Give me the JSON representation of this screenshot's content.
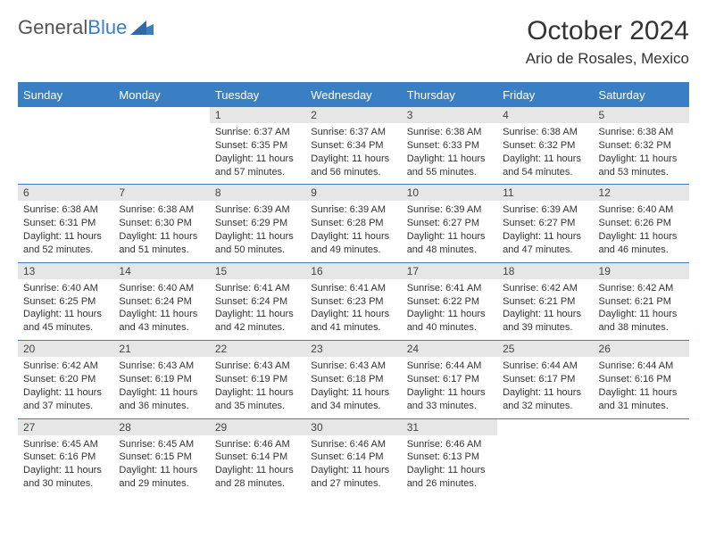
{
  "brand": {
    "part1": "General",
    "part2": "Blue"
  },
  "title": "October 2024",
  "location": "Ario de Rosales, Mexico",
  "colors": {
    "header_bg": "#3a7fc4",
    "header_text": "#ffffff",
    "daynum_bg": "#e6e6e6",
    "border": "#3a7fc4",
    "text": "#333333",
    "logo_gray": "#555555",
    "logo_blue": "#3a7fc4"
  },
  "daysOfWeek": [
    "Sunday",
    "Monday",
    "Tuesday",
    "Wednesday",
    "Thursday",
    "Friday",
    "Saturday"
  ],
  "weeks": [
    [
      null,
      null,
      {
        "n": "1",
        "sr": "Sunrise: 6:37 AM",
        "ss": "Sunset: 6:35 PM",
        "dl": "Daylight: 11 hours and 57 minutes."
      },
      {
        "n": "2",
        "sr": "Sunrise: 6:37 AM",
        "ss": "Sunset: 6:34 PM",
        "dl": "Daylight: 11 hours and 56 minutes."
      },
      {
        "n": "3",
        "sr": "Sunrise: 6:38 AM",
        "ss": "Sunset: 6:33 PM",
        "dl": "Daylight: 11 hours and 55 minutes."
      },
      {
        "n": "4",
        "sr": "Sunrise: 6:38 AM",
        "ss": "Sunset: 6:32 PM",
        "dl": "Daylight: 11 hours and 54 minutes."
      },
      {
        "n": "5",
        "sr": "Sunrise: 6:38 AM",
        "ss": "Sunset: 6:32 PM",
        "dl": "Daylight: 11 hours and 53 minutes."
      }
    ],
    [
      {
        "n": "6",
        "sr": "Sunrise: 6:38 AM",
        "ss": "Sunset: 6:31 PM",
        "dl": "Daylight: 11 hours and 52 minutes."
      },
      {
        "n": "7",
        "sr": "Sunrise: 6:38 AM",
        "ss": "Sunset: 6:30 PM",
        "dl": "Daylight: 11 hours and 51 minutes."
      },
      {
        "n": "8",
        "sr": "Sunrise: 6:39 AM",
        "ss": "Sunset: 6:29 PM",
        "dl": "Daylight: 11 hours and 50 minutes."
      },
      {
        "n": "9",
        "sr": "Sunrise: 6:39 AM",
        "ss": "Sunset: 6:28 PM",
        "dl": "Daylight: 11 hours and 49 minutes."
      },
      {
        "n": "10",
        "sr": "Sunrise: 6:39 AM",
        "ss": "Sunset: 6:27 PM",
        "dl": "Daylight: 11 hours and 48 minutes."
      },
      {
        "n": "11",
        "sr": "Sunrise: 6:39 AM",
        "ss": "Sunset: 6:27 PM",
        "dl": "Daylight: 11 hours and 47 minutes."
      },
      {
        "n": "12",
        "sr": "Sunrise: 6:40 AM",
        "ss": "Sunset: 6:26 PM",
        "dl": "Daylight: 11 hours and 46 minutes."
      }
    ],
    [
      {
        "n": "13",
        "sr": "Sunrise: 6:40 AM",
        "ss": "Sunset: 6:25 PM",
        "dl": "Daylight: 11 hours and 45 minutes."
      },
      {
        "n": "14",
        "sr": "Sunrise: 6:40 AM",
        "ss": "Sunset: 6:24 PM",
        "dl": "Daylight: 11 hours and 43 minutes."
      },
      {
        "n": "15",
        "sr": "Sunrise: 6:41 AM",
        "ss": "Sunset: 6:24 PM",
        "dl": "Daylight: 11 hours and 42 minutes."
      },
      {
        "n": "16",
        "sr": "Sunrise: 6:41 AM",
        "ss": "Sunset: 6:23 PM",
        "dl": "Daylight: 11 hours and 41 minutes."
      },
      {
        "n": "17",
        "sr": "Sunrise: 6:41 AM",
        "ss": "Sunset: 6:22 PM",
        "dl": "Daylight: 11 hours and 40 minutes."
      },
      {
        "n": "18",
        "sr": "Sunrise: 6:42 AM",
        "ss": "Sunset: 6:21 PM",
        "dl": "Daylight: 11 hours and 39 minutes."
      },
      {
        "n": "19",
        "sr": "Sunrise: 6:42 AM",
        "ss": "Sunset: 6:21 PM",
        "dl": "Daylight: 11 hours and 38 minutes."
      }
    ],
    [
      {
        "n": "20",
        "sr": "Sunrise: 6:42 AM",
        "ss": "Sunset: 6:20 PM",
        "dl": "Daylight: 11 hours and 37 minutes."
      },
      {
        "n": "21",
        "sr": "Sunrise: 6:43 AM",
        "ss": "Sunset: 6:19 PM",
        "dl": "Daylight: 11 hours and 36 minutes."
      },
      {
        "n": "22",
        "sr": "Sunrise: 6:43 AM",
        "ss": "Sunset: 6:19 PM",
        "dl": "Daylight: 11 hours and 35 minutes."
      },
      {
        "n": "23",
        "sr": "Sunrise: 6:43 AM",
        "ss": "Sunset: 6:18 PM",
        "dl": "Daylight: 11 hours and 34 minutes."
      },
      {
        "n": "24",
        "sr": "Sunrise: 6:44 AM",
        "ss": "Sunset: 6:17 PM",
        "dl": "Daylight: 11 hours and 33 minutes."
      },
      {
        "n": "25",
        "sr": "Sunrise: 6:44 AM",
        "ss": "Sunset: 6:17 PM",
        "dl": "Daylight: 11 hours and 32 minutes."
      },
      {
        "n": "26",
        "sr": "Sunrise: 6:44 AM",
        "ss": "Sunset: 6:16 PM",
        "dl": "Daylight: 11 hours and 31 minutes."
      }
    ],
    [
      {
        "n": "27",
        "sr": "Sunrise: 6:45 AM",
        "ss": "Sunset: 6:16 PM",
        "dl": "Daylight: 11 hours and 30 minutes."
      },
      {
        "n": "28",
        "sr": "Sunrise: 6:45 AM",
        "ss": "Sunset: 6:15 PM",
        "dl": "Daylight: 11 hours and 29 minutes."
      },
      {
        "n": "29",
        "sr": "Sunrise: 6:46 AM",
        "ss": "Sunset: 6:14 PM",
        "dl": "Daylight: 11 hours and 28 minutes."
      },
      {
        "n": "30",
        "sr": "Sunrise: 6:46 AM",
        "ss": "Sunset: 6:14 PM",
        "dl": "Daylight: 11 hours and 27 minutes."
      },
      {
        "n": "31",
        "sr": "Sunrise: 6:46 AM",
        "ss": "Sunset: 6:13 PM",
        "dl": "Daylight: 11 hours and 26 minutes."
      },
      null,
      null
    ]
  ]
}
